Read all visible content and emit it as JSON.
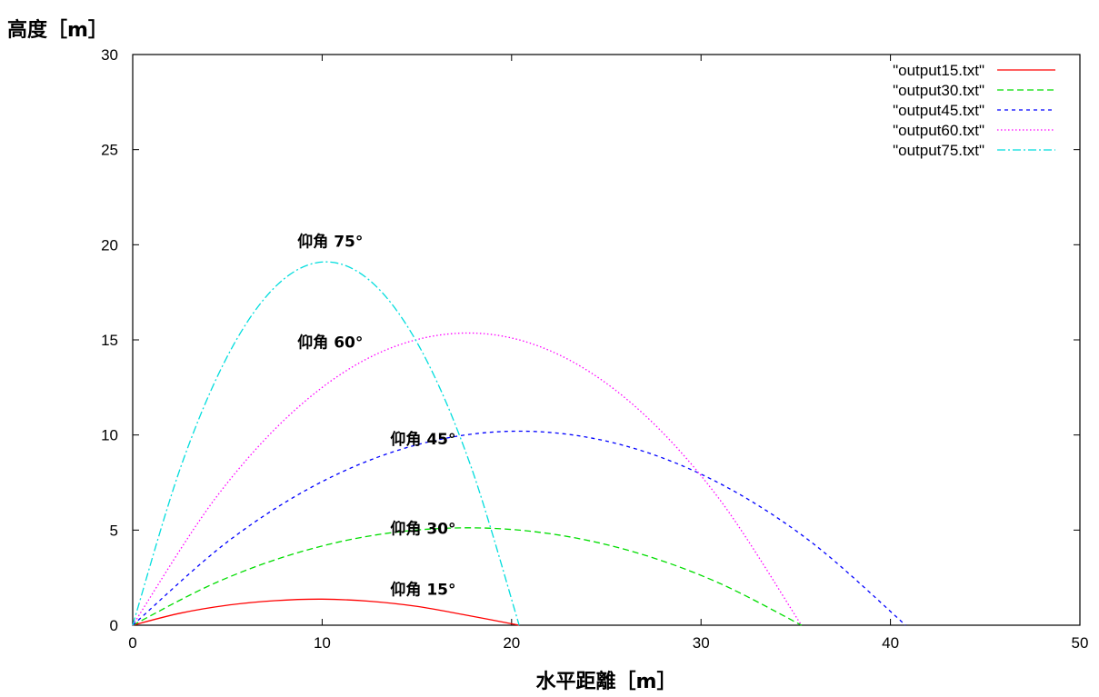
{
  "chart_data": {
    "type": "line",
    "ylabel": "高度［m］",
    "xlabel": "水平距離［m］",
    "xlim": [
      0,
      50
    ],
    "ylim": [
      0,
      30
    ],
    "xticks": [
      "0",
      "10",
      "20",
      "30",
      "40",
      "50"
    ],
    "yticks": [
      "0",
      "5",
      "10",
      "15",
      "20",
      "25",
      "30"
    ],
    "grid": false,
    "legend_position": "top-right",
    "series": [
      {
        "name": "\"output15.txt\"",
        "color": "#ff0000",
        "dash": "solid",
        "x": [
          0,
          2.5,
          5,
          7.5,
          10,
          12.5,
          15,
          17.5,
          20.4
        ],
        "y": [
          0,
          0.63,
          1.05,
          1.29,
          1.37,
          1.26,
          0.99,
          0.55,
          0
        ]
      },
      {
        "name": "\"output30.txt\"",
        "color": "#00dd00",
        "dash": "dashed",
        "x": [
          0,
          4.4,
          8.8,
          13.2,
          17.7,
          22.1,
          26.5,
          30.9,
          35.3
        ],
        "y": [
          0,
          2.24,
          3.84,
          4.8,
          5.12,
          4.8,
          3.84,
          2.24,
          0
        ]
      },
      {
        "name": "\"output45.txt\"",
        "color": "#0000ff",
        "dash": "short-dashed",
        "x": [
          0,
          5.1,
          10.2,
          15.3,
          20.4,
          25.5,
          30.6,
          35.7,
          40.8
        ],
        "y": [
          0,
          4.46,
          7.65,
          9.56,
          10.2,
          9.56,
          7.65,
          4.46,
          0
        ]
      },
      {
        "name": "\"output60.txt\"",
        "color": "#ff00ff",
        "dash": "dotted",
        "x": [
          0,
          4.4,
          8.8,
          13.2,
          17.7,
          22.1,
          26.5,
          30.9,
          35.3
        ],
        "y": [
          0,
          6.72,
          11.52,
          14.4,
          15.36,
          14.4,
          11.52,
          6.72,
          0
        ]
      },
      {
        "name": "\"output75.txt\"",
        "color": "#00dddd",
        "dash": "dash-dot",
        "x": [
          0,
          2.55,
          5.1,
          7.65,
          10.2,
          12.75,
          15.3,
          17.85,
          20.4
        ],
        "y": [
          0,
          8.36,
          14.33,
          17.91,
          19.1,
          17.91,
          14.33,
          8.36,
          0
        ]
      }
    ],
    "annotations": [
      {
        "text": "仰角 75°",
        "x": 8.7,
        "y": 19.9
      },
      {
        "text": "仰角 60°",
        "x": 8.7,
        "y": 14.6
      },
      {
        "text": "仰角 45°",
        "x": 13.6,
        "y": 9.5
      },
      {
        "text": "仰角 30°",
        "x": 13.6,
        "y": 4.8
      },
      {
        "text": "仰角 15°",
        "x": 13.6,
        "y": 1.6
      }
    ]
  }
}
